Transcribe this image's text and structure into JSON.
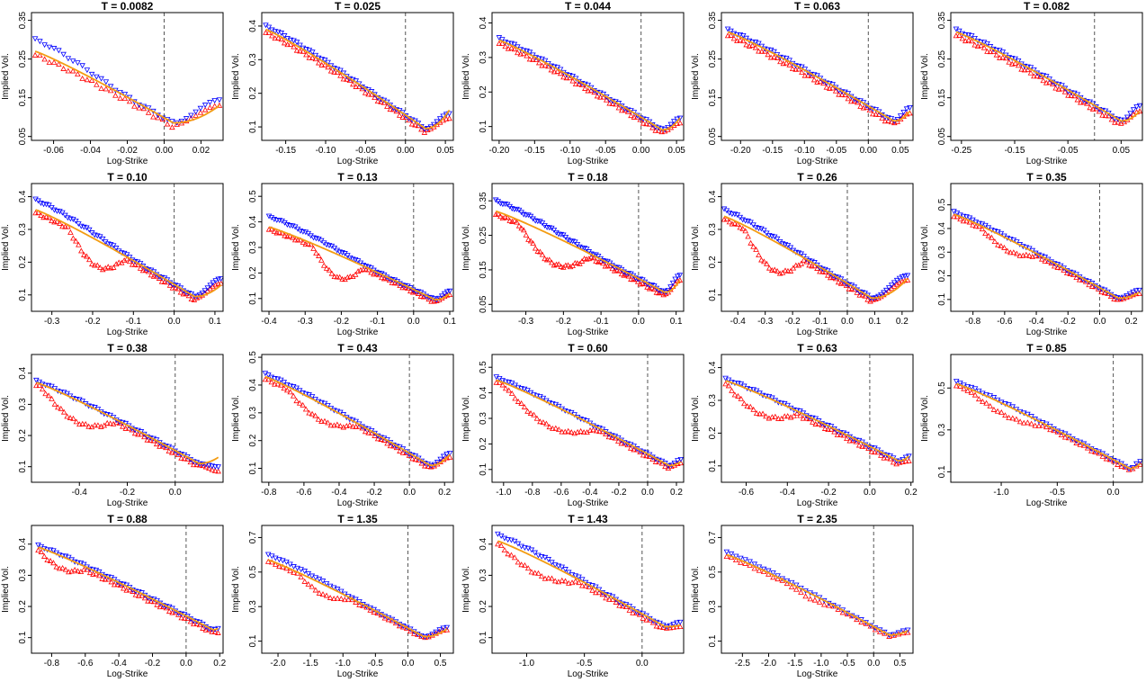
{
  "figure": {
    "xlabel": "Log-Strike",
    "ylabel": "Implied Vol."
  },
  "colors": {
    "fit": "#f39c12",
    "bid": "#ff0000",
    "ask": "#0000ff",
    "atm_line": "#555555"
  },
  "chart_data": [
    {
      "type": "scatter",
      "title": "T = 0.0082",
      "xlabel": "Log-Strike",
      "ylabel": "Implied Vol.",
      "xlim": [
        -0.072,
        0.032
      ],
      "ylim": [
        0.04,
        0.37
      ],
      "xticks": [
        -0.06,
        -0.04,
        -0.02,
        0.0,
        0.02
      ],
      "xtick_labels": [
        "-0.06",
        "-0.04",
        "-0.02",
        "0.00",
        "0.02"
      ],
      "yticks": [
        0.05,
        0.15,
        0.25,
        0.35
      ],
      "ytick_labels": [
        "0.05",
        "0.15",
        "0.25",
        "0.35"
      ],
      "xmin": -0.07,
      "xmax": 0.03,
      "left_level": 0.27,
      "min_x": 0.005,
      "min_vol": 0.085,
      "right_vol": 0.135,
      "curve_right": 0.13,
      "bump": 0,
      "bump_range": [
        0,
        0
      ],
      "ask_offset": 0.03,
      "n_points": 40
    },
    {
      "type": "scatter",
      "title": "T = 0.025",
      "xlabel": "Log-Strike",
      "ylabel": "Implied Vol.",
      "xlim": [
        -0.18,
        0.06
      ],
      "ylim": [
        0.06,
        0.44
      ],
      "xticks": [
        -0.15,
        -0.1,
        -0.05,
        0.0,
        0.05
      ],
      "xtick_labels": [
        "-0.15",
        "-0.10",
        "-0.05",
        "0.00",
        "0.05"
      ],
      "yticks": [
        0.1,
        0.2,
        0.3,
        0.4
      ],
      "ytick_labels": [
        "0.1",
        "0.2",
        "0.3",
        "0.4"
      ],
      "xmin": -0.175,
      "xmax": 0.055,
      "left_level": 0.39,
      "min_x": 0.025,
      "min_vol": 0.095,
      "right_vol": 0.13,
      "curve_right": 0.15,
      "bump": 0,
      "bump_range": [
        0,
        0
      ],
      "ask_offset": 0.01,
      "n_points": 60
    },
    {
      "type": "scatter",
      "title": "T = 0.044",
      "xlabel": "Log-Strike",
      "ylabel": "Implied Vol.",
      "xlim": [
        -0.21,
        0.06
      ],
      "ylim": [
        0.06,
        0.43
      ],
      "xticks": [
        -0.2,
        -0.15,
        -0.1,
        -0.05,
        0.0,
        0.05
      ],
      "xtick_labels": [
        "-0.20",
        "-0.15",
        "-0.10",
        "-0.05",
        "0.00",
        "0.05"
      ],
      "yticks": [
        0.1,
        0.2,
        0.3,
        0.4
      ],
      "ytick_labels": [
        "0.1",
        "0.2",
        "0.3",
        "0.4"
      ],
      "xmin": -0.2,
      "xmax": 0.055,
      "left_level": 0.35,
      "min_x": 0.03,
      "min_vol": 0.09,
      "right_vol": 0.115,
      "curve_right": 0.125,
      "bump": 0,
      "bump_range": [
        0,
        0
      ],
      "ask_offset": 0.005,
      "n_points": 60
    },
    {
      "type": "scatter",
      "title": "T = 0.063",
      "xlabel": "Log-Strike",
      "ylabel": "Implied Vol.",
      "xlim": [
        -0.23,
        0.07
      ],
      "ylim": [
        0.04,
        0.37
      ],
      "xticks": [
        -0.2,
        -0.15,
        -0.1,
        -0.05,
        0.0,
        0.05
      ],
      "xtick_labels": [
        "-0.20",
        "-0.15",
        "-0.10",
        "-0.05",
        "0.00",
        "0.05"
      ],
      "yticks": [
        0.05,
        0.15,
        0.25,
        0.35
      ],
      "ytick_labels": [
        "0.05",
        "0.15",
        "0.25",
        "0.35"
      ],
      "xmin": -0.22,
      "xmax": 0.065,
      "left_level": 0.32,
      "min_x": 0.04,
      "min_vol": 0.09,
      "right_vol": 0.115,
      "curve_right": 0.115,
      "bump": 0,
      "bump_range": [
        0,
        0
      ],
      "ask_offset": 0.005,
      "n_points": 60
    },
    {
      "type": "scatter",
      "title": "T = 0.082",
      "xlabel": "Log-Strike",
      "ylabel": "Implied Vol.",
      "xlim": [
        -0.27,
        0.09
      ],
      "ylim": [
        0.04,
        0.37
      ],
      "xticks": [
        -0.25,
        -0.15,
        -0.05,
        0.05
      ],
      "xtick_labels": [
        "-0.25",
        "-0.15",
        "-0.05",
        "0.05"
      ],
      "yticks": [
        0.05,
        0.15,
        0.25,
        0.35
      ],
      "ytick_labels": [
        "0.05",
        "0.15",
        "0.25",
        "0.35"
      ],
      "xmin": -0.26,
      "xmax": 0.085,
      "left_level": 0.32,
      "min_x": 0.05,
      "min_vol": 0.09,
      "right_vol": 0.12,
      "curve_right": 0.115,
      "bump": 0,
      "bump_range": [
        0,
        0
      ],
      "ask_offset": 0.005,
      "n_points": 60
    },
    {
      "type": "scatter",
      "title": "T = 0.10",
      "xlabel": "Log-Strike",
      "ylabel": "Implied Vol.",
      "xlim": [
        -0.35,
        0.12
      ],
      "ylim": [
        0.05,
        0.44
      ],
      "xticks": [
        -0.3,
        -0.2,
        -0.1,
        0.0,
        0.1
      ],
      "xtick_labels": [
        "-0.3",
        "-0.2",
        "-0.1",
        "0.0",
        "0.1"
      ],
      "yticks": [
        0.1,
        0.2,
        0.3,
        0.4
      ],
      "ytick_labels": [
        "0.1",
        "0.2",
        "0.3",
        "0.4"
      ],
      "xmin": -0.34,
      "xmax": 0.115,
      "left_level": 0.36,
      "min_x": 0.05,
      "min_vol": 0.095,
      "right_vol": 0.14,
      "curve_right": 0.13,
      "bump": -0.07,
      "bump_range": [
        -0.26,
        -0.12
      ],
      "ask_offset": 0.03,
      "n_points": 70
    },
    {
      "type": "scatter",
      "title": "T = 0.13",
      "xlabel": "Log-Strike",
      "ylabel": "Implied Vol.",
      "xlim": [
        -0.42,
        0.11
      ],
      "ylim": [
        0.05,
        0.55
      ],
      "xticks": [
        -0.4,
        -0.3,
        -0.2,
        -0.1,
        0.0,
        0.1
      ],
      "xtick_labels": [
        "-0.4",
        "-0.3",
        "-0.2",
        "-0.1",
        "0.0",
        "0.1"
      ],
      "yticks": [
        0.1,
        0.2,
        0.3,
        0.4,
        0.5
      ],
      "ytick_labels": [
        "0.1",
        "0.2",
        "0.3",
        "0.4",
        "0.5"
      ],
      "xmin": -0.4,
      "xmax": 0.1,
      "left_level": 0.38,
      "min_x": 0.06,
      "min_vol": 0.095,
      "right_vol": 0.12,
      "curve_right": 0.12,
      "bump": -0.08,
      "bump_range": [
        -0.28,
        -0.14
      ],
      "ask_offset": 0.04,
      "n_points": 70
    },
    {
      "type": "scatter",
      "title": "T = 0.18",
      "xlabel": "Log-Strike",
      "ylabel": "Implied Vol.",
      "xlim": [
        -0.39,
        0.12
      ],
      "ylim": [
        0.03,
        0.4
      ],
      "xticks": [
        -0.3,
        -0.2,
        -0.1,
        0.0,
        0.1
      ],
      "xtick_labels": [
        "-0.3",
        "-0.2",
        "-0.1",
        "0.0",
        "0.1"
      ],
      "yticks": [
        0.05,
        0.15,
        0.25,
        0.35
      ],
      "ytick_labels": [
        "0.05",
        "0.15",
        "0.25",
        "0.35"
      ],
      "xmin": -0.38,
      "xmax": 0.11,
      "left_level": 0.32,
      "min_x": 0.07,
      "min_vol": 0.085,
      "right_vol": 0.125,
      "curve_right": 0.12,
      "bump": -0.07,
      "bump_range": [
        -0.32,
        -0.13
      ],
      "ask_offset": 0.03,
      "n_points": 80
    },
    {
      "type": "scatter",
      "title": "T = 0.26",
      "xlabel": "Log-Strike",
      "ylabel": "Implied Vol.",
      "xlim": [
        -0.46,
        0.24
      ],
      "ylim": [
        0.05,
        0.44
      ],
      "xticks": [
        -0.4,
        -0.3,
        -0.2,
        -0.1,
        0.0,
        0.1,
        0.2
      ],
      "xtick_labels": [
        "-0.4",
        "-0.3",
        "-0.2",
        "-0.1",
        "0.0",
        "0.1",
        "0.2"
      ],
      "yticks": [
        0.1,
        0.2,
        0.3,
        0.4
      ],
      "ytick_labels": [
        "0.1",
        "0.2",
        "0.3",
        "0.4"
      ],
      "xmin": -0.45,
      "xmax": 0.22,
      "left_level": 0.34,
      "min_x": 0.09,
      "min_vol": 0.09,
      "right_vol": 0.15,
      "curve_right": 0.15,
      "bump": -0.08,
      "bump_range": [
        -0.38,
        -0.16
      ],
      "ask_offset": 0.02,
      "n_points": 70
    },
    {
      "type": "scatter",
      "title": "T = 0.35",
      "xlabel": "Log-Strike",
      "ylabel": "Implied Vol.",
      "xlim": [
        -0.94,
        0.27
      ],
      "ylim": [
        0.05,
        0.59
      ],
      "xticks": [
        -0.8,
        -0.6,
        -0.4,
        -0.2,
        0.0,
        0.2
      ],
      "xtick_labels": [
        "-0.8",
        "-0.6",
        "-0.4",
        "-0.2",
        "0.0",
        "0.2"
      ],
      "yticks": [
        0.1,
        0.2,
        0.3,
        0.4,
        0.5
      ],
      "ytick_labels": [
        "0.1",
        "0.2",
        "0.3",
        "0.4",
        "0.5"
      ],
      "xmin": -0.92,
      "xmax": 0.25,
      "left_level": 0.46,
      "min_x": 0.12,
      "min_vol": 0.105,
      "right_vol": 0.13,
      "curve_right": 0.13,
      "bump": -0.04,
      "bump_range": [
        -0.75,
        -0.4
      ],
      "ask_offset": 0.01,
      "n_points": 60
    },
    {
      "type": "scatter",
      "title": "T = 0.38",
      "xlabel": "Log-Strike",
      "ylabel": "Implied Vol.",
      "xlim": [
        -0.6,
        0.2
      ],
      "ylim": [
        0.05,
        0.46
      ],
      "xticks": [
        -0.4,
        -0.2,
        0.0
      ],
      "xtick_labels": [
        "-0.4",
        "-0.2",
        "0.0"
      ],
      "yticks": [
        0.1,
        0.2,
        0.3,
        0.4
      ],
      "ytick_labels": [
        "0.1",
        "0.2",
        "0.3",
        "0.4"
      ],
      "xmin": -0.58,
      "xmax": 0.18,
      "left_level": 0.37,
      "min_x": 0.1,
      "min_vol": 0.11,
      "right_vol": 0.09,
      "curve_right": 0.13,
      "bump": -0.06,
      "bump_range": [
        -0.56,
        -0.25
      ],
      "ask_offset": 0.005,
      "n_points": 60
    },
    {
      "type": "scatter",
      "title": "T = 0.43",
      "xlabel": "Log-Strike",
      "ylabel": "Implied Vol.",
      "xlim": [
        -0.84,
        0.25
      ],
      "ylim": [
        0.05,
        0.51
      ],
      "xticks": [
        -0.8,
        -0.6,
        -0.4,
        -0.2,
        0.0,
        0.2
      ],
      "xtick_labels": [
        "-0.8",
        "-0.6",
        "-0.4",
        "-0.2",
        "0.0",
        "0.2"
      ],
      "yticks": [
        0.1,
        0.2,
        0.3,
        0.4,
        0.5
      ],
      "ytick_labels": [
        "0.1",
        "0.2",
        "0.3",
        "0.4",
        "0.5"
      ],
      "xmin": -0.82,
      "xmax": 0.23,
      "left_level": 0.43,
      "min_x": 0.12,
      "min_vol": 0.11,
      "right_vol": 0.145,
      "curve_right": 0.15,
      "bump": -0.05,
      "bump_range": [
        -0.7,
        -0.3
      ],
      "ask_offset": 0.01,
      "n_points": 60
    },
    {
      "type": "scatter",
      "title": "T = 0.60",
      "xlabel": "Log-Strike",
      "ylabel": "Implied Vol.",
      "xlim": [
        -1.08,
        0.25
      ],
      "ylim": [
        0.05,
        0.55
      ],
      "xticks": [
        -1.0,
        -0.8,
        -0.6,
        -0.4,
        -0.2,
        0.0,
        0.2
      ],
      "xtick_labels": [
        "-1.0",
        "-0.8",
        "-0.6",
        "-0.4",
        "-0.2",
        "0.0",
        "0.2"
      ],
      "yticks": [
        0.1,
        0.2,
        0.3,
        0.4,
        0.5
      ],
      "ytick_labels": [
        "0.1",
        "0.2",
        "0.3",
        "0.4",
        "0.5"
      ],
      "xmin": -1.05,
      "xmax": 0.23,
      "left_level": 0.45,
      "min_x": 0.15,
      "min_vol": 0.115,
      "right_vol": 0.13,
      "curve_right": 0.13,
      "bump": -0.08,
      "bump_range": [
        -1.0,
        -0.35
      ],
      "ask_offset": 0.01,
      "n_points": 60
    },
    {
      "type": "scatter",
      "title": "T = 0.63",
      "xlabel": "Log-Strike",
      "ylabel": "Implied Vol.",
      "xlim": [
        -0.72,
        0.21
      ],
      "ylim": [
        0.05,
        0.44
      ],
      "xticks": [
        -0.6,
        -0.4,
        -0.2,
        0.0,
        0.2
      ],
      "xtick_labels": [
        "-0.6",
        "-0.4",
        "-0.2",
        "0.0",
        "0.2"
      ],
      "yticks": [
        0.1,
        0.2,
        0.3,
        0.4
      ],
      "ytick_labels": [
        "0.1",
        "0.2",
        "0.3",
        "0.4"
      ],
      "xmin": -0.7,
      "xmax": 0.19,
      "left_level": 0.36,
      "min_x": 0.14,
      "min_vol": 0.115,
      "right_vol": 0.12,
      "curve_right": 0.13,
      "bump": -0.05,
      "bump_range": [
        -0.7,
        -0.35
      ],
      "ask_offset": 0.005,
      "n_points": 60
    },
    {
      "type": "scatter",
      "title": "T = 0.85",
      "xlabel": "Log-Strike",
      "ylabel": "Implied Vol.",
      "xlim": [
        -1.45,
        0.26
      ],
      "ylim": [
        0.05,
        0.66
      ],
      "xticks": [
        -1.0,
        -0.5,
        0.0
      ],
      "xtick_labels": [
        "-1.0",
        "-0.5",
        "0.0"
      ],
      "yticks": [
        0.1,
        0.3,
        0.5
      ],
      "ytick_labels": [
        "0.1",
        "0.3",
        "0.5"
      ],
      "xmin": -1.4,
      "xmax": 0.24,
      "left_level": 0.52,
      "min_x": 0.15,
      "min_vol": 0.115,
      "right_vol": 0.14,
      "curve_right": 0.14,
      "bump": -0.04,
      "bump_range": [
        -1.3,
        -0.6
      ],
      "ask_offset": 0.01,
      "n_points": 50
    },
    {
      "type": "scatter",
      "title": "T = 0.88",
      "xlabel": "Log-Strike",
      "ylabel": "Implied Vol.",
      "xlim": [
        -0.92,
        0.22
      ],
      "ylim": [
        0.05,
        0.46
      ],
      "xticks": [
        -0.8,
        -0.6,
        -0.4,
        -0.2,
        0.0,
        0.2
      ],
      "xtick_labels": [
        "-0.8",
        "-0.6",
        "-0.4",
        "-0.2",
        "0.0",
        "0.2"
      ],
      "yticks": [
        0.1,
        0.2,
        0.3,
        0.4
      ],
      "ytick_labels": [
        "0.1",
        "0.2",
        "0.3",
        "0.4"
      ],
      "xmin": -0.88,
      "xmax": 0.19,
      "left_level": 0.39,
      "min_x": 0.16,
      "min_vol": 0.125,
      "right_vol": 0.12,
      "curve_right": 0.13,
      "bump": -0.03,
      "bump_range": [
        -0.88,
        -0.6
      ],
      "ask_offset": 0.005,
      "n_points": 60
    },
    {
      "type": "scatter",
      "title": "T = 1.35",
      "xlabel": "Log-Strike",
      "ylabel": "Implied Vol.",
      "xlim": [
        -2.25,
        0.7
      ],
      "ylim": [
        0.03,
        0.77
      ],
      "xticks": [
        -2.0,
        -1.5,
        -1.0,
        -0.5,
        0.0,
        0.5
      ],
      "xtick_labels": [
        "-2.0",
        "-1.5",
        "-1.0",
        "-0.5",
        "0.0",
        "0.5"
      ],
      "yticks": [
        0.1,
        0.3,
        0.5,
        0.7
      ],
      "ytick_labels": [
        "0.1",
        "0.3",
        "0.5",
        "0.7"
      ],
      "xmin": -2.15,
      "xmax": 0.6,
      "left_level": 0.57,
      "min_x": 0.25,
      "min_vol": 0.125,
      "right_vol": 0.17,
      "curve_right": 0.17,
      "bump": -0.05,
      "bump_range": [
        -1.7,
        -0.9
      ],
      "ask_offset": 0.03,
      "n_points": 50
    },
    {
      "type": "scatter",
      "title": "T = 1.43",
      "xlabel": "Log-Strike",
      "ylabel": "Implied Vol.",
      "xlim": [
        -1.3,
        0.36
      ],
      "ylim": [
        0.05,
        0.46
      ],
      "xticks": [
        -1.0,
        -0.5,
        0.0
      ],
      "xtick_labels": [
        "-1.0",
        "-0.5",
        "0.0"
      ],
      "yticks": [
        0.1,
        0.2,
        0.3,
        0.4
      ],
      "ytick_labels": [
        "0.1",
        "0.2",
        "0.3",
        "0.4"
      ],
      "xmin": -1.25,
      "xmax": 0.33,
      "left_level": 0.41,
      "min_x": 0.2,
      "min_vol": 0.135,
      "right_vol": 0.14,
      "curve_right": 0.14,
      "bump": -0.04,
      "bump_range": [
        -1.25,
        -0.55
      ],
      "ask_offset": 0.02,
      "n_points": 55
    },
    {
      "type": "scatter",
      "title": "T = 2.35",
      "xlabel": "Log-Strike",
      "ylabel": "Implied Vol.",
      "xlim": [
        -2.9,
        0.75
      ],
      "ylim": [
        0.03,
        0.77
      ],
      "xticks": [
        -2.5,
        -2.0,
        -1.5,
        -1.0,
        -0.5,
        0.0,
        0.5
      ],
      "xtick_labels": [
        "-2.5",
        "-2.0",
        "-1.5",
        "-1.0",
        "-0.5",
        "0.0",
        "0.5"
      ],
      "yticks": [
        0.1,
        0.3,
        0.5,
        0.7
      ],
      "ytick_labels": [
        "0.1",
        "0.3",
        "0.5",
        "0.7"
      ],
      "xmin": -2.8,
      "xmax": 0.65,
      "left_level": 0.6,
      "min_x": 0.3,
      "min_vol": 0.135,
      "right_vol": 0.155,
      "curve_right": 0.16,
      "bump": -0.02,
      "bump_range": [
        -1.6,
        -0.8
      ],
      "ask_offset": 0.015,
      "n_points": 40
    }
  ]
}
